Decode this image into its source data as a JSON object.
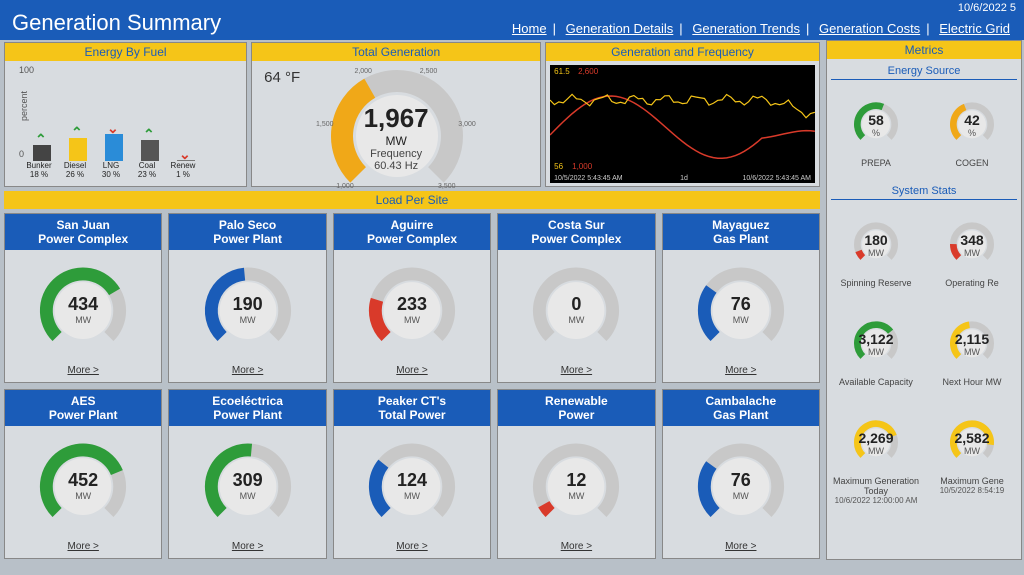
{
  "timestamp": "10/6/2022 5",
  "page_title": "Generation Summary",
  "nav": {
    "home": "Home",
    "details": "Generation Details",
    "trends": "Generation Trends",
    "costs": "Generation Costs",
    "grid": "Electric Grid"
  },
  "energy_by_fuel": {
    "title": "Energy By Fuel",
    "ylabel": "percent",
    "ymax": 100,
    "bars": [
      {
        "label": "Bunker",
        "pct": "18 %",
        "value": 18,
        "color": "#444444",
        "arrow": "up",
        "arrow_color": "#2e9c3a"
      },
      {
        "label": "Diesel",
        "pct": "26 %",
        "value": 26,
        "color": "#f5c518",
        "arrow": "up",
        "arrow_color": "#2e9c3a"
      },
      {
        "label": "LNG",
        "pct": "30 %",
        "value": 30,
        "color": "#2a8cd8",
        "arrow": "down",
        "arrow_color": "#d93a2a"
      },
      {
        "label": "Coal",
        "pct": "23 %",
        "value": 23,
        "color": "#555555",
        "arrow": "up",
        "arrow_color": "#2e9c3a"
      },
      {
        "label": "Renew",
        "pct": "1 %",
        "value": 1,
        "color": "#777777",
        "arrow": "down",
        "arrow_color": "#d93a2a"
      }
    ]
  },
  "total_generation": {
    "title": "Total Generation",
    "temp": "64 °F",
    "value": "1,967",
    "unit": "MW",
    "freq_label": "Frequency",
    "freq_value": "60.43 Hz",
    "min": 1000,
    "max": 3500,
    "ticks": [
      "1,000",
      "1,500",
      "2,000",
      "2,500",
      "3,000",
      "3,500"
    ],
    "fill_color": "#f0a818",
    "bg_color": "#c8c8c8",
    "fill_pct": 0.39
  },
  "gen_freq": {
    "title": "Generation and Frequency",
    "y_top_label": "61.5",
    "y_top_series": "2,600",
    "y_mid": [
      "60",
      "59",
      "58"
    ],
    "y_bot": "56",
    "y_bot_series": "1,000",
    "x_start": "10/5/2022 5:43:45 AM",
    "x_mid": "1d",
    "x_end": "10/6/2022 5:43:45 AM",
    "line1_color": "#d93a2a",
    "line2_color": "#f5c518",
    "bg": "#000000"
  },
  "load_per_site": {
    "title": "Load Per Site",
    "more": "More >",
    "sites": [
      {
        "name1": "San Juan",
        "name2": "Power Complex",
        "value": "434",
        "unit": "MW",
        "max": 600,
        "fill": 0.72,
        "color": "#2e9c3a",
        "ticks": [
          "0",
          "100",
          "200",
          "300",
          "400",
          "500",
          "600"
        ]
      },
      {
        "name1": "Palo Seco",
        "name2": "Power Plant",
        "value": "190",
        "unit": "MW",
        "max": 400,
        "fill": 0.48,
        "color": "#1a5cb8",
        "ticks": [
          "0",
          "50",
          "100",
          "150",
          "200",
          "250",
          "300",
          "350",
          "400"
        ]
      },
      {
        "name1": "Aguirre",
        "name2": "Power Complex",
        "value": "233",
        "unit": "MW",
        "max": 1000,
        "fill": 0.23,
        "color": "#d93a2a",
        "ticks": [
          "0",
          "200",
          "400",
          "500",
          "600",
          "800",
          "1,000"
        ]
      },
      {
        "name1": "Costa Sur",
        "name2": "Power Complex",
        "value": "0",
        "unit": "MW",
        "max": 1000,
        "fill": 0.0,
        "color": "#888888",
        "ticks": [
          "0",
          "200",
          "400",
          "500",
          "600",
          "800",
          "1,000"
        ]
      },
      {
        "name1": "Mayaguez",
        "name2": "Gas Plant",
        "value": "76",
        "unit": "MW",
        "max": 250,
        "fill": 0.3,
        "color": "#1a5cb8",
        "ticks": [
          "0",
          "50",
          "100",
          "150",
          "200",
          "250"
        ]
      },
      {
        "name1": "AES",
        "name2": "Power Plant",
        "value": "452",
        "unit": "MW",
        "max": 600,
        "fill": 0.75,
        "color": "#2e9c3a",
        "ticks": [
          "0",
          "100",
          "200",
          "300",
          "400",
          "500",
          "600"
        ]
      },
      {
        "name1": "Ecoeléctrica",
        "name2": "Power Plant",
        "value": "309",
        "unit": "MW",
        "max": 600,
        "fill": 0.52,
        "color": "#2e9c3a",
        "ticks": [
          "0",
          "100",
          "200",
          "300",
          "400",
          "500",
          "600"
        ]
      },
      {
        "name1": "Peaker CT's",
        "name2": "Total Power",
        "value": "124",
        "unit": "MW",
        "max": 400,
        "fill": 0.31,
        "color": "#1a5cb8",
        "ticks": [
          "0",
          "100",
          "200",
          "300",
          "400"
        ]
      },
      {
        "name1": "Renewable",
        "name2": "Power",
        "value": "12",
        "unit": "MW",
        "max": 200,
        "fill": 0.06,
        "color": "#d93a2a",
        "ticks": [
          "0",
          "25",
          "50",
          "75",
          "100",
          "125",
          "150",
          "175",
          "200"
        ]
      },
      {
        "name1": "Cambalache",
        "name2": "Gas Plant",
        "value": "76",
        "unit": "MW",
        "max": 250,
        "fill": 0.3,
        "color": "#1a5cb8",
        "ticks": [
          "0",
          "50",
          "100",
          "150",
          "200",
          "250"
        ]
      }
    ]
  },
  "metrics": {
    "title": "Metrics",
    "energy_source_title": "Energy Source",
    "es": [
      {
        "value": "58",
        "unit": "%",
        "label": "PREPA",
        "color": "#2e9c3a",
        "fill": 0.58,
        "ticks": [
          "10",
          "20",
          "30",
          "40",
          "50",
          "60",
          "70",
          "80",
          "90",
          "100"
        ]
      },
      {
        "value": "42",
        "unit": "%",
        "label": "COGEN",
        "color": "#f0a818",
        "fill": 0.42,
        "ticks": [
          "10",
          "20",
          "30",
          "40",
          "50",
          "60",
          "70",
          "80",
          "90",
          "100"
        ]
      }
    ],
    "system_stats_title": "System Stats",
    "stats": [
      {
        "value": "180",
        "unit": "MW",
        "label": "Spinning Reserve",
        "color": "#d93a2a",
        "fill": 0.09,
        "ticks": [
          "400",
          "800",
          "1,200",
          "1,600",
          "2,000"
        ]
      },
      {
        "value": "348",
        "unit": "MW",
        "label": "Operating Re",
        "color": "#d93a2a",
        "fill": 0.17,
        "ticks": [
          "400",
          "800",
          "1,200",
          "1,600",
          "2,000"
        ]
      },
      {
        "value": "3,122",
        "unit": "MW",
        "label": "Available Capacity",
        "color": "#2e9c3a",
        "fill": 0.69,
        "ticks": [
          "500",
          "1,000",
          "1,500",
          "2,000",
          "2,500",
          "3,000",
          "3,500",
          "4,000",
          "4,500"
        ]
      },
      {
        "value": "2,115",
        "unit": "MW",
        "label": "Next Hour MW",
        "color": "#f5c518",
        "fill": 0.47,
        "ticks": [
          "500",
          "1,000",
          "1,500",
          "2,000",
          "2,500",
          "3,000",
          "3,500",
          "4,000",
          "4,500"
        ]
      },
      {
        "value": "2,269",
        "unit": "MW",
        "label": "Maximum Generation Today",
        "sub": "10/6/2022 12:00:00 AM",
        "color": "#f5c518",
        "fill": 0.76,
        "ticks": [
          "500",
          "1,000",
          "1,500",
          "2,000",
          "2,500",
          "3,000"
        ]
      },
      {
        "value": "2,582",
        "unit": "MW",
        "label": "Maximum Gene",
        "sub": "10/5/2022 8:54:19",
        "color": "#f5c518",
        "fill": 0.86,
        "ticks": [
          "500",
          "1,000",
          "1,500",
          "2,000",
          "2,500",
          "3,000"
        ]
      }
    ]
  }
}
